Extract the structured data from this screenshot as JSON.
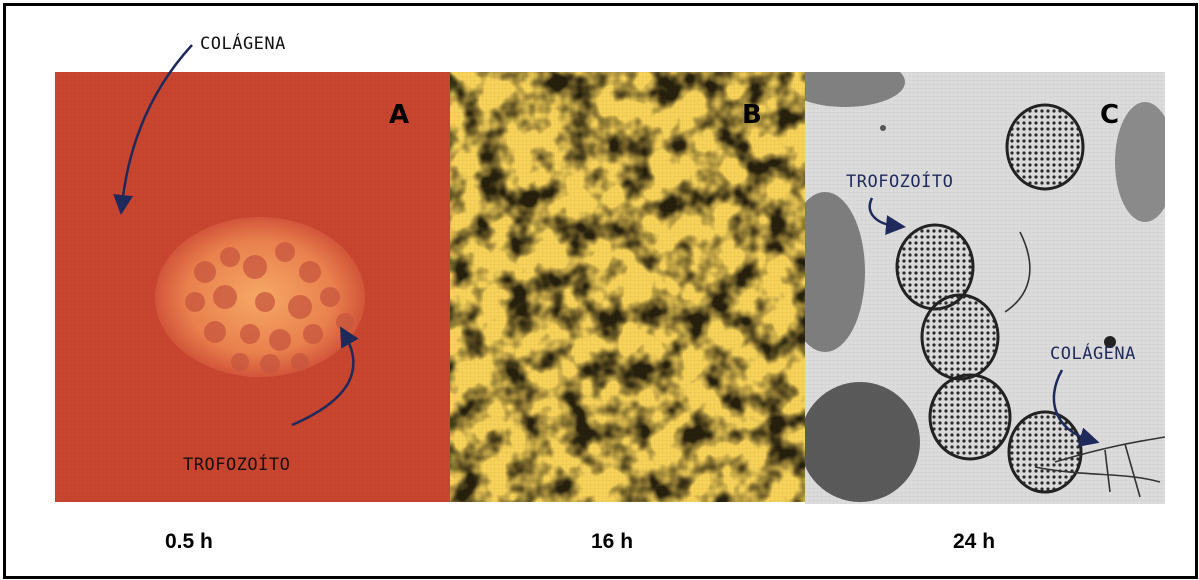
{
  "panels": [
    {
      "letter": "A",
      "time": "0.5 h"
    },
    {
      "letter": "B",
      "time": "16 h"
    },
    {
      "letter": "C",
      "time": "24 h"
    }
  ],
  "annotations": {
    "colagena_a": "COLÁGENA",
    "trofozoito_a": "TROFOZOÍTO",
    "trofozoito_c": "TROFOZOÍTO",
    "colagena_c": "COLÁGENA"
  },
  "colors": {
    "panel_a_background": "#c8452f",
    "panel_b_light": "#f7d35a",
    "panel_b_dark": "#5a2a0c",
    "panel_c_background": "#d9d9d9",
    "arrow": "#1f2a5c"
  }
}
